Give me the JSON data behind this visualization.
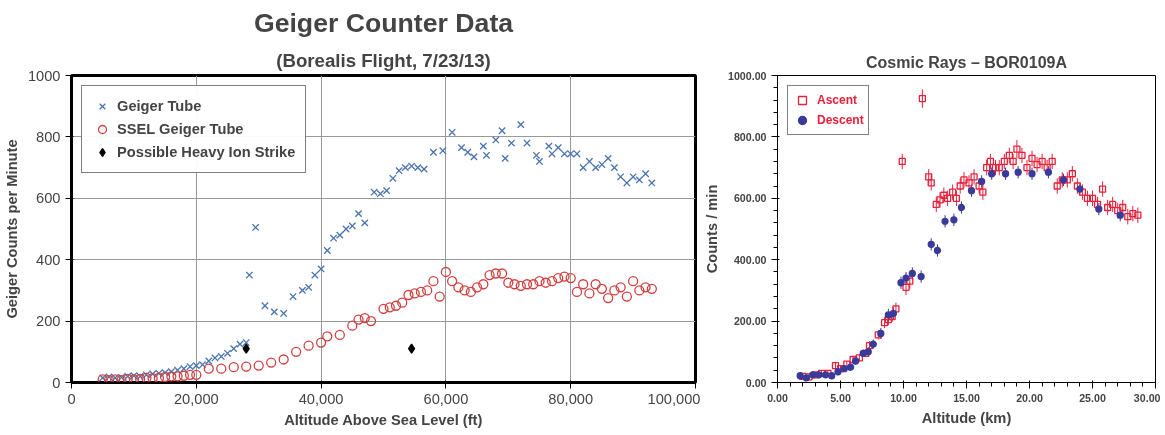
{
  "chart_data": [
    {
      "type": "scatter",
      "title": "Geiger Counter Data",
      "subtitle": "(Borealis Flight, 7/23/13)",
      "xlabel": "Altitude Above Sea Level (ft)",
      "ylabel": "Geiger Counts per Minute",
      "xlim": [
        0,
        100000
      ],
      "xticks": [
        0,
        {
          "value": 20000,
          "label": "20,000"
        },
        {
          "value": 40000,
          "label": "40,000"
        },
        {
          "value": 60000,
          "label": "60,000"
        },
        {
          "value": 80000,
          "label": "80,000"
        },
        {
          "value": 100000,
          "label": "100,000"
        }
      ],
      "ylim": [
        0,
        1000
      ],
      "yticks": [
        0,
        200,
        400,
        600,
        800,
        1000
      ],
      "grid": true,
      "legend": "top left",
      "series": [
        {
          "name": "Geiger Tube",
          "color": "#4a74b0",
          "marker": "cross",
          "x": [
            5000,
            6000,
            7000,
            8000,
            9000,
            10000,
            11000,
            12000,
            13000,
            14000,
            15000,
            16000,
            17000,
            18000,
            19000,
            20000,
            21000,
            22000,
            23000,
            24000,
            25000,
            26000,
            27000,
            28000,
            28500,
            29500,
            31000,
            32500,
            34000,
            35500,
            37000,
            38000,
            39000,
            40000,
            41000,
            42000,
            43000,
            44000,
            45000,
            46000,
            47000,
            48500,
            49500,
            50500,
            51500,
            52500,
            53500,
            54500,
            55500,
            56500,
            58000,
            59500,
            61000,
            62500,
            63500,
            64500,
            66000,
            66500,
            68000,
            69000,
            69500,
            70500,
            72000,
            73000,
            74500,
            75000,
            76500,
            77000,
            78000,
            79000,
            80000,
            81000,
            82000,
            83000,
            84000,
            85000,
            86000,
            87000,
            88000,
            89000,
            90000,
            91000,
            92000,
            93000
          ],
          "values": [
            15,
            18,
            15,
            17,
            20,
            22,
            20,
            25,
            28,
            30,
            32,
            35,
            40,
            45,
            52,
            55,
            58,
            70,
            80,
            85,
            95,
            110,
            125,
            130,
            350,
            505,
            250,
            230,
            225,
            280,
            300,
            310,
            350,
            370,
            430,
            470,
            480,
            500,
            510,
            550,
            520,
            620,
            615,
            625,
            665,
            690,
            700,
            705,
            700,
            695,
            750,
            755,
            815,
            765,
            750,
            735,
            770,
            740,
            790,
            820,
            730,
            780,
            840,
            780,
            740,
            720,
            770,
            745,
            765,
            745,
            745,
            745,
            700,
            720,
            700,
            710,
            730,
            700,
            670,
            650,
            670,
            660,
            680,
            650
          ]
        },
        {
          "name": "SSEL Geiger Tube",
          "color": "#d0403f",
          "marker": "circle",
          "x": [
            5000,
            6000,
            7000,
            8000,
            9000,
            10000,
            11000,
            12000,
            13000,
            14000,
            15000,
            16000,
            17000,
            18000,
            19000,
            20000,
            22000,
            24000,
            26000,
            28000,
            30000,
            32000,
            34000,
            36000,
            38000,
            40000,
            41000,
            43000,
            45000,
            46000,
            47000,
            48000,
            50000,
            51000,
            52000,
            53000,
            54000,
            55000,
            56000,
            57000,
            58000,
            59000,
            60000,
            61000,
            62000,
            63000,
            64000,
            65000,
            66000,
            67000,
            68000,
            69000,
            70000,
            71000,
            72000,
            73000,
            74000,
            75000,
            76000,
            77000,
            78000,
            79000,
            80000,
            81000,
            82000,
            83000,
            84000,
            85000,
            86000,
            87000,
            88000,
            89000,
            90000,
            91000,
            92000,
            93000
          ],
          "values": [
            10,
            8,
            10,
            8,
            12,
            10,
            12,
            15,
            14,
            15,
            18,
            20,
            20,
            22,
            25,
            25,
            45,
            45,
            50,
            52,
            55,
            65,
            75,
            100,
            120,
            130,
            150,
            155,
            185,
            205,
            210,
            200,
            240,
            245,
            250,
            260,
            285,
            290,
            295,
            300,
            330,
            280,
            360,
            330,
            310,
            300,
            295,
            310,
            320,
            350,
            355,
            355,
            325,
            320,
            315,
            320,
            320,
            330,
            325,
            330,
            340,
            345,
            340,
            295,
            320,
            290,
            320,
            305,
            275,
            300,
            310,
            280,
            330,
            300,
            310,
            305
          ]
        },
        {
          "name": "Possible Heavy Ion Strike",
          "color": "#000000",
          "marker": "diamond",
          "x": [
            28000,
            54500
          ],
          "values": [
            110,
            110
          ]
        }
      ]
    },
    {
      "type": "scatter",
      "title": "Cosmic Rays – BOR0109A",
      "xlabel": "Altitude (km)",
      "ylabel": "Counts / min",
      "xlim": [
        0,
        30
      ],
      "xticks": [
        {
          "value": 0,
          "label": "0.00"
        },
        {
          "value": 5,
          "label": "5.00"
        },
        {
          "value": 10,
          "label": "10.00"
        },
        {
          "value": 15,
          "label": "15.00"
        },
        {
          "value": 20,
          "label": "20.00"
        },
        {
          "value": 25,
          "label": "25.00"
        },
        {
          "value": 30,
          "label": "30.00"
        }
      ],
      "ylim": [
        0,
        1000
      ],
      "yticks": [
        {
          "value": 0,
          "label": "0.00"
        },
        {
          "value": 200,
          "label": "200.00"
        },
        {
          "value": 400,
          "label": "400.00"
        },
        {
          "value": 600,
          "label": "600.00"
        },
        {
          "value": 800,
          "label": "800.00"
        },
        {
          "value": 1000,
          "label": "1000.00"
        }
      ],
      "legend": "top left",
      "series": [
        {
          "name": "Ascent",
          "color": "#e8203a",
          "marker": "square",
          "x": [
            2.0,
            2.5,
            3.0,
            3.5,
            4.0,
            4.6,
            5.0,
            5.5,
            6.0,
            6.5,
            7.0,
            7.3,
            8.0,
            8.5,
            8.8,
            9.1,
            9.4,
            9.9,
            10.2,
            10.5,
            11.5,
            12.0,
            12.2,
            12.6,
            12.9,
            13.2,
            13.5,
            13.9,
            14.2,
            14.5,
            14.8,
            15.2,
            15.6,
            16.0,
            16.3,
            16.6,
            16.9,
            17.3,
            17.6,
            18.0,
            18.4,
            18.7,
            19.0,
            19.4,
            19.8,
            20.2,
            20.6,
            21.0,
            21.4,
            21.8,
            22.2,
            22.6,
            23.0,
            23.4,
            23.8,
            24.2,
            24.6,
            25.0,
            25.4,
            25.8,
            26.2,
            26.6,
            27.0,
            27.4,
            27.8,
            28.2,
            28.6
          ],
          "values": [
            20,
            18,
            25,
            30,
            30,
            55,
            45,
            60,
            75,
            80,
            95,
            120,
            155,
            195,
            205,
            215,
            240,
            720,
            310,
            330,
            925,
            670,
            650,
            580,
            595,
            610,
            600,
            620,
            600,
            640,
            660,
            650,
            670,
            640,
            620,
            700,
            720,
            700,
            700,
            720,
            740,
            720,
            760,
            740,
            700,
            730,
            710,
            720,
            700,
            720,
            640,
            660,
            660,
            680,
            640,
            620,
            600,
            600,
            580,
            630,
            570,
            580,
            560,
            570,
            540,
            550,
            545
          ],
          "errors": [
            10,
            10,
            10,
            10,
            10,
            10,
            10,
            10,
            12,
            12,
            12,
            15,
            15,
            18,
            18,
            18,
            20,
            25,
            25,
            25,
            30,
            25,
            25,
            25,
            25,
            25,
            25,
            25,
            25,
            25,
            25,
            25,
            25,
            25,
            25,
            25,
            25,
            25,
            25,
            25,
            25,
            25,
            30,
            25,
            25,
            25,
            25,
            25,
            25,
            25,
            25,
            25,
            25,
            25,
            25,
            25,
            25,
            25,
            25,
            25,
            25,
            25,
            25,
            25,
            25,
            25,
            25
          ]
        },
        {
          "name": "Descent",
          "color": "#3a3a9a",
          "marker": "circle",
          "x": [
            1.8,
            2.3,
            2.8,
            3.3,
            3.8,
            4.3,
            4.8,
            5.3,
            5.8,
            6.2,
            6.8,
            7.2,
            7.6,
            8.2,
            8.8,
            9.2,
            9.8,
            10.2,
            10.7,
            11.4,
            12.2,
            12.7,
            13.3,
            14.0,
            14.6,
            15.4,
            16.2,
            17.0,
            18.1,
            19.1,
            20.2,
            21.5,
            22.7,
            24.0,
            25.5,
            27.2
          ],
          "values": [
            22,
            15,
            25,
            25,
            25,
            22,
            35,
            45,
            50,
            70,
            95,
            100,
            125,
            160,
            220,
            225,
            325,
            340,
            355,
            345,
            450,
            430,
            525,
            530,
            570,
            625,
            655,
            680,
            680,
            685,
            680,
            685,
            660,
            630,
            565,
            545
          ],
          "errors": [
            10,
            10,
            10,
            10,
            10,
            10,
            10,
            10,
            12,
            12,
            12,
            15,
            15,
            18,
            20,
            20,
            20,
            20,
            20,
            20,
            20,
            20,
            20,
            20,
            20,
            20,
            20,
            20,
            20,
            20,
            20,
            20,
            20,
            20,
            20,
            20
          ]
        }
      ]
    }
  ]
}
